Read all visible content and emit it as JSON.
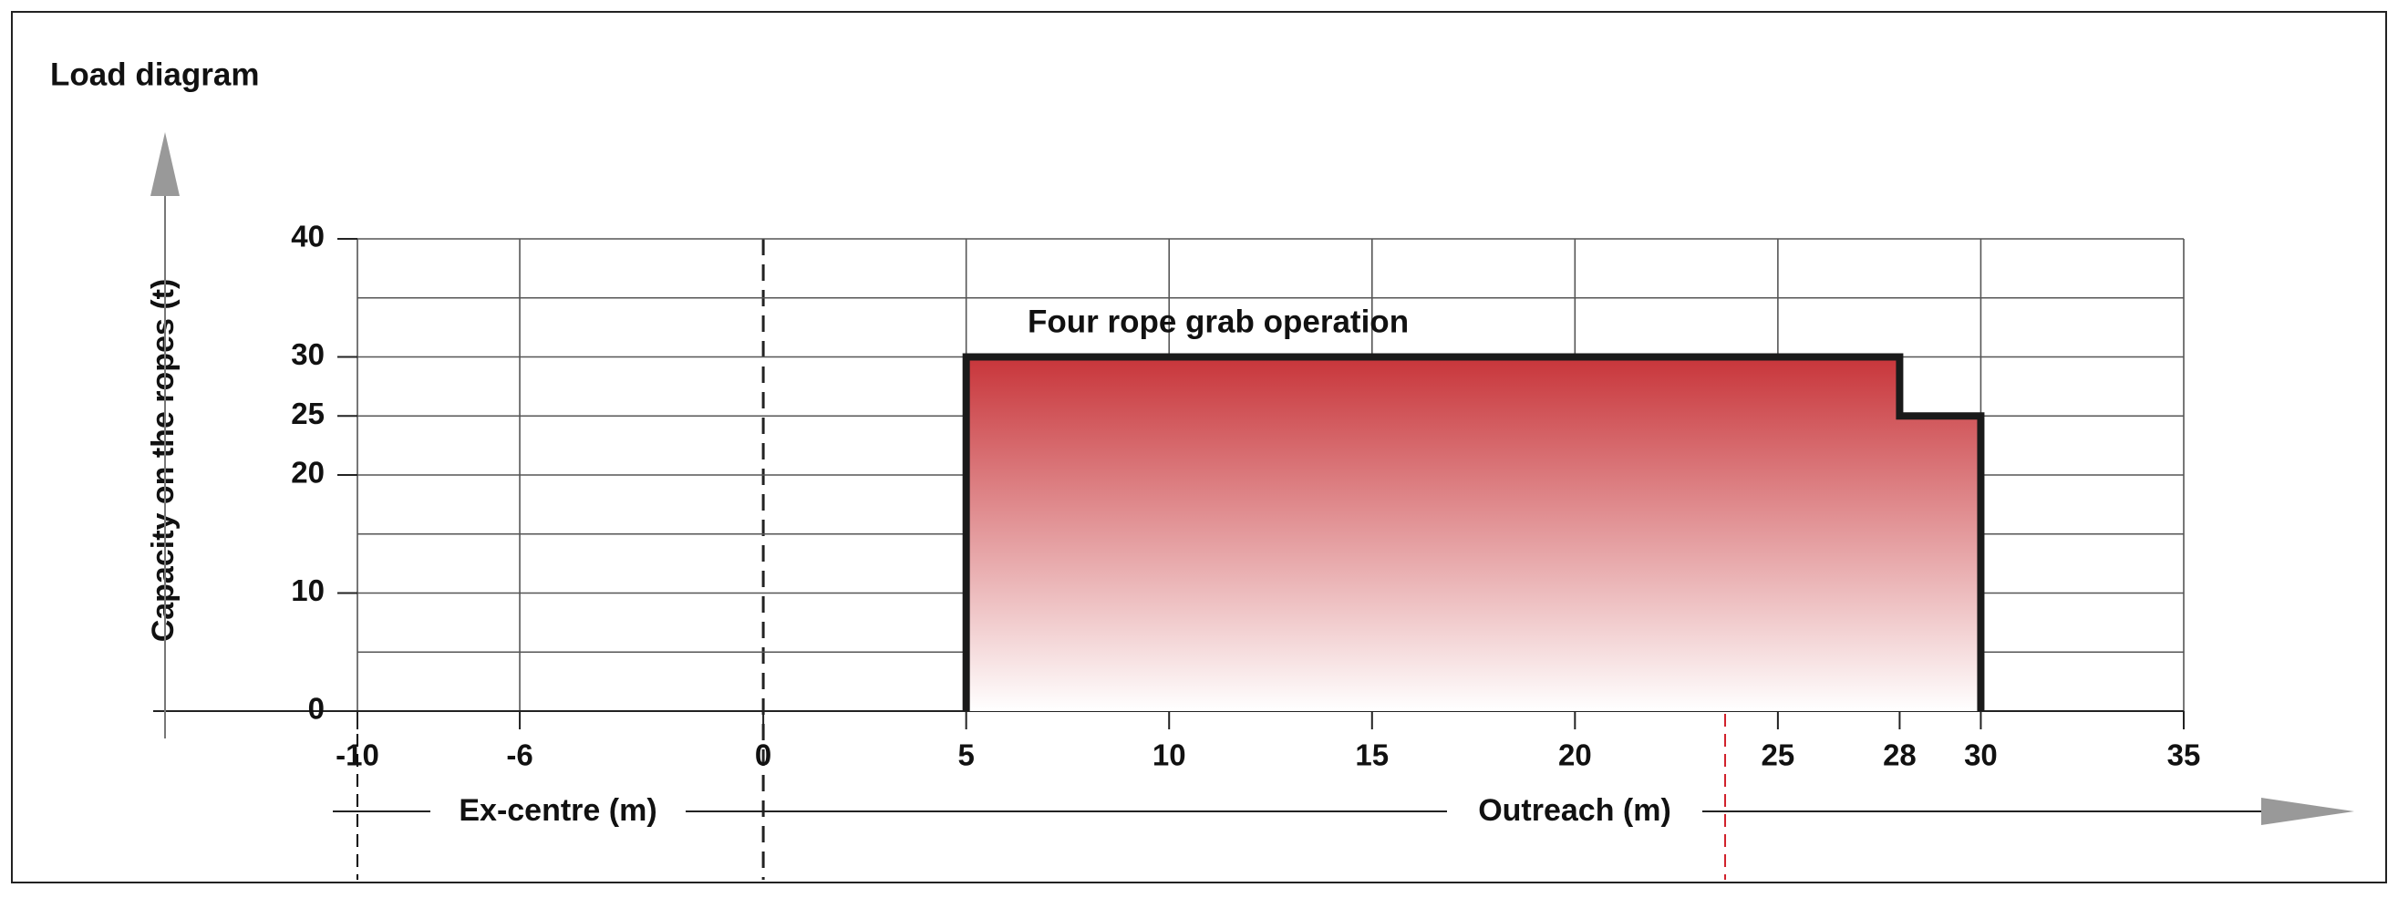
{
  "chart_data": {
    "type": "area",
    "title": "Load diagram",
    "y_label": "Capacity on the ropes (t)",
    "annotation": "Four rope grab operation",
    "x_labels": [
      "Ex-centre (m)",
      "Outreach (m)"
    ],
    "x": [
      5,
      5,
      28,
      28,
      30,
      30
    ],
    "values": [
      0,
      30,
      30,
      25,
      25,
      0
    ],
    "color": "#c8353a",
    "line_color": "#1a1a1a",
    "xlim": [
      -10,
      35
    ],
    "ylim": [
      0,
      40
    ],
    "xticks": [
      -10,
      -6,
      0,
      5,
      10,
      15,
      20,
      25,
      28,
      30,
      35
    ],
    "yticks": [
      0,
      10,
      20,
      25,
      30,
      40
    ],
    "xgrid": [
      -10,
      -6,
      0,
      5,
      10,
      15,
      20,
      25,
      30,
      35
    ],
    "ygrid": [
      0,
      5,
      10,
      15,
      20,
      25,
      30,
      35,
      40
    ],
    "dashed_x": 0,
    "reference_lines": [
      {
        "x": -10,
        "color": "#000000"
      },
      {
        "x": 23.7,
        "color": "#d0202a"
      }
    ]
  }
}
